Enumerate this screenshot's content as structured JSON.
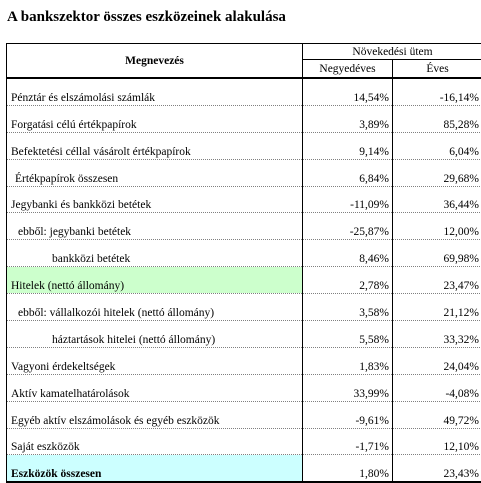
{
  "title": "A bankszektor összes eszközeinek  alakulása",
  "header": {
    "name_col": "Megnevezés",
    "group": "Növekedési ütem",
    "quarterly": "Negyedéves",
    "annual": "Éves"
  },
  "rows": [
    {
      "label": "Pénztár és elszámolási számlák",
      "q": "14,54%",
      "y": "-16,14%"
    },
    {
      "label": "Forgatási célú értékpapírok",
      "q": "3,89%",
      "y": "85,28%"
    },
    {
      "label": "Befektetési céllal vásárolt értékpapírok",
      "q": "9,14%",
      "y": "6,04%"
    },
    {
      "label": "Értékpapírok összesen",
      "q": "6,84%",
      "y": "29,68%"
    },
    {
      "label": "Jegybanki és bankközi betétek",
      "q": "-11,09%",
      "y": "36,44%"
    },
    {
      "label": "ebből: jegybanki betétek",
      "q": "-25,87%",
      "y": "12,00%"
    },
    {
      "label": "bankközi betétek",
      "q": "8,46%",
      "y": "69,98%"
    },
    {
      "label": "Hitelek (nettó állomány)",
      "q": "2,78%",
      "y": "23,47%"
    },
    {
      "label": "ebből: vállalkozói hitelek (nettó állomány)",
      "q": "3,58%",
      "y": "21,12%"
    },
    {
      "label": "háztartások hitelei (nettó állomány)",
      "q": "5,58%",
      "y": "33,32%"
    },
    {
      "label": "Vagyoni érdekeltségek",
      "q": "1,83%",
      "y": "24,04%"
    },
    {
      "label": "Aktív kamatelhatárolások",
      "q": "33,99%",
      "y": "-4,08%"
    },
    {
      "label": "Egyéb aktív elszámolások és egyéb eszközök",
      "q": "-9,61%",
      "y": "49,72%"
    },
    {
      "label": "Saját eszközök",
      "q": "-1,71%",
      "y": "12,10%"
    },
    {
      "label": "Eszközök összesen",
      "q": "1,80%",
      "y": "23,43%"
    }
  ],
  "colors": {
    "highlight_green": "#ccffcc",
    "highlight_cyan": "#ccffff"
  }
}
